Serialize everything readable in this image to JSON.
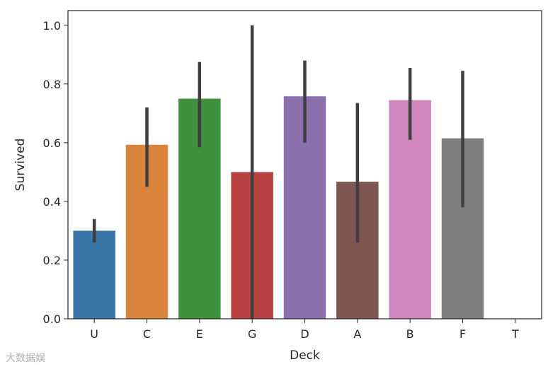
{
  "chart_data": {
    "type": "bar",
    "categories": [
      "U",
      "C",
      "E",
      "G",
      "D",
      "A",
      "B",
      "F",
      "T"
    ],
    "values": [
      0.3,
      0.593,
      0.75,
      0.5,
      0.758,
      0.467,
      0.745,
      0.615,
      0.0
    ],
    "error_low": [
      0.26,
      0.45,
      0.585,
      0.0,
      0.6,
      0.26,
      0.61,
      0.38,
      null
    ],
    "error_high": [
      0.34,
      0.72,
      0.875,
      1.0,
      0.88,
      0.735,
      0.855,
      0.845,
      null
    ],
    "colors": [
      "#3a75a8",
      "#d9843b",
      "#3f913f",
      "#b94142",
      "#8b70ad",
      "#7f5750",
      "#cf87bd",
      "#7f7f7f",
      "#b9b94a"
    ],
    "xlabel": "Deck",
    "ylabel": "Survived",
    "ylim": [
      0.0,
      1.05
    ],
    "yticks": [
      0.0,
      0.2,
      0.4,
      0.6,
      0.8,
      1.0
    ],
    "ytick_labels": [
      "0.0",
      "0.2",
      "0.4",
      "0.6",
      "0.8",
      "1.0"
    ],
    "grid": false,
    "legend": "none"
  },
  "watermark": {
    "text": "大数据娱"
  }
}
